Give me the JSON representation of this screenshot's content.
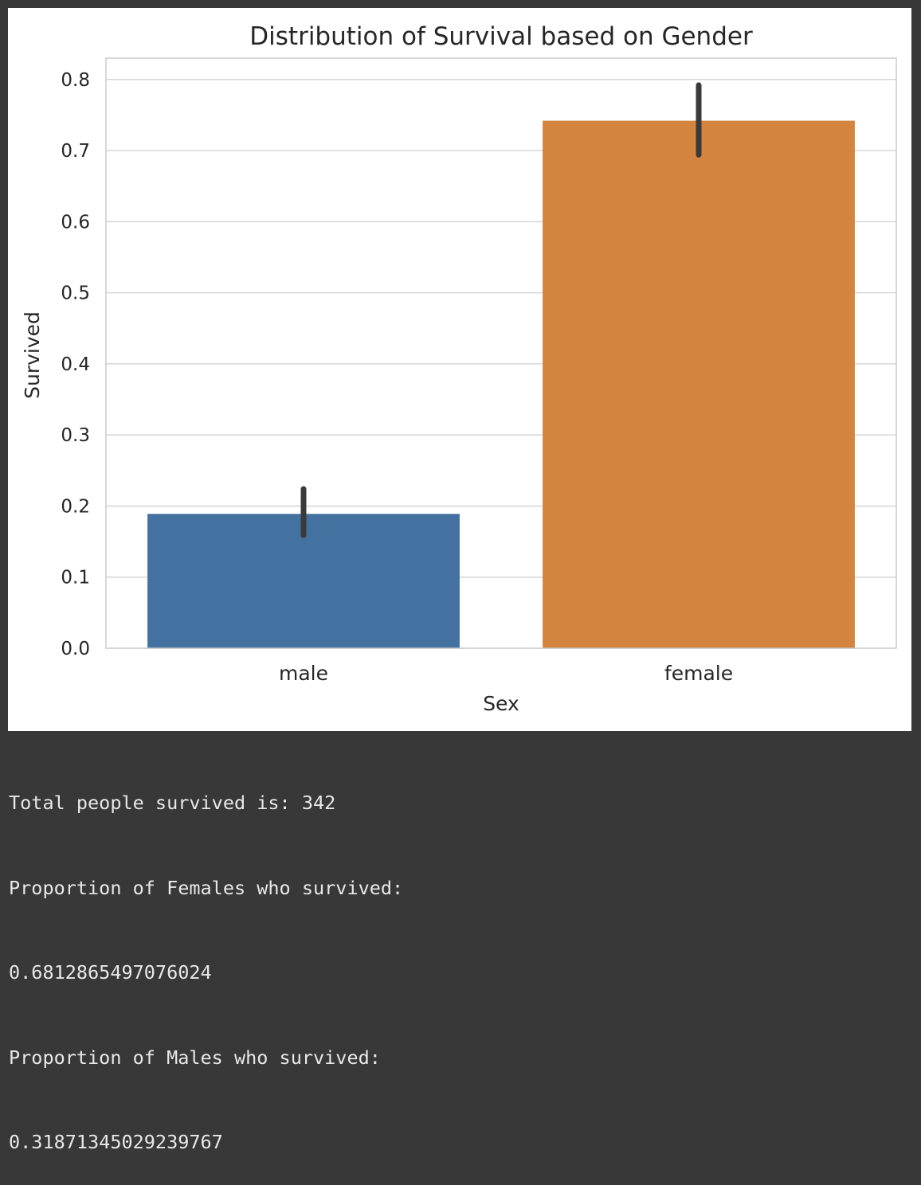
{
  "chart_data": {
    "type": "bar",
    "title": "Distribution of Survival based on Gender",
    "xlabel": "Sex",
    "ylabel": "Survived",
    "categories": [
      "male",
      "female"
    ],
    "values": [
      0.189,
      0.742
    ],
    "error_bars": [
      {
        "low": 0.159,
        "high": 0.224
      },
      {
        "low": 0.694,
        "high": 0.792
      }
    ],
    "bar_colors": [
      "#4472a0",
      "#d3843f"
    ],
    "error_bar_color": "#3a3a3a",
    "ylim": [
      0,
      0.83
    ],
    "yticks": [
      "0.0",
      "0.1",
      "0.2",
      "0.3",
      "0.4",
      "0.5",
      "0.6",
      "0.7",
      "0.8"
    ],
    "grid": true,
    "legend": false
  },
  "output": {
    "lines": [
      "Total people survived is: 342",
      "Proportion of Females who survived:",
      "0.6812865497076024",
      "Proportion of Males who survived:",
      "0.31871345029239767"
    ]
  }
}
